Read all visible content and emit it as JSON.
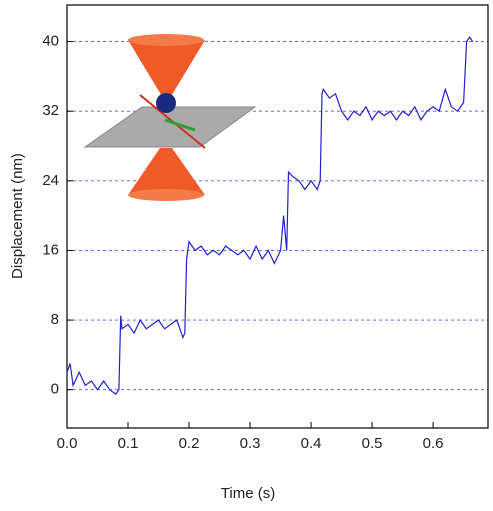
{
  "chart_data": {
    "type": "line",
    "x_label": "Time (s)",
    "y_label": "Displacement (nm)",
    "x": [
      0.0,
      0.005,
      0.01,
      0.02,
      0.03,
      0.04,
      0.05,
      0.06,
      0.07,
      0.08,
      0.085,
      0.088,
      0.09,
      0.1,
      0.11,
      0.12,
      0.13,
      0.14,
      0.15,
      0.16,
      0.17,
      0.18,
      0.19,
      0.193,
      0.196,
      0.2,
      0.21,
      0.22,
      0.23,
      0.24,
      0.25,
      0.26,
      0.27,
      0.28,
      0.29,
      0.3,
      0.31,
      0.32,
      0.33,
      0.34,
      0.35,
      0.355,
      0.36,
      0.363,
      0.37,
      0.38,
      0.39,
      0.4,
      0.41,
      0.415,
      0.418,
      0.42,
      0.43,
      0.44,
      0.45,
      0.46,
      0.47,
      0.48,
      0.49,
      0.5,
      0.51,
      0.52,
      0.53,
      0.54,
      0.55,
      0.56,
      0.57,
      0.58,
      0.59,
      0.6,
      0.61,
      0.62,
      0.63,
      0.64,
      0.65,
      0.655,
      0.66,
      0.665
    ],
    "series": [
      {
        "color": "#2020d0",
        "values": [
          2,
          3,
          0.5,
          2,
          0.5,
          1,
          0,
          1,
          0,
          -0.5,
          0,
          8.5,
          7,
          7.5,
          6.5,
          8,
          7,
          7.5,
          8,
          7,
          7.5,
          8,
          6,
          6.5,
          15,
          17,
          16,
          16.5,
          15.5,
          16,
          15.5,
          16.5,
          16,
          15.5,
          16,
          15,
          16.5,
          15,
          16,
          14.5,
          16,
          20,
          16,
          25,
          24.5,
          24,
          23,
          24,
          23,
          24,
          34,
          34.5,
          33.5,
          34,
          32,
          31,
          32,
          31.5,
          32.5,
          31,
          32,
          31.5,
          32,
          31,
          32,
          31.5,
          32.5,
          31,
          32,
          32.5,
          32,
          34.5,
          32.5,
          32,
          33,
          40,
          40.5,
          40
        ]
      }
    ],
    "xlim": [
      0,
      0.69
    ],
    "ylim": [
      -4.4,
      44.2
    ],
    "xticks": [
      {
        "value": 0,
        "label": "0.0"
      },
      0.1,
      0.2,
      0.3,
      0.4,
      0.5,
      0.6
    ],
    "yticks": [
      0,
      8,
      16,
      24,
      32,
      40
    ],
    "grid": true,
    "grid_color": "#5555dd"
  }
}
